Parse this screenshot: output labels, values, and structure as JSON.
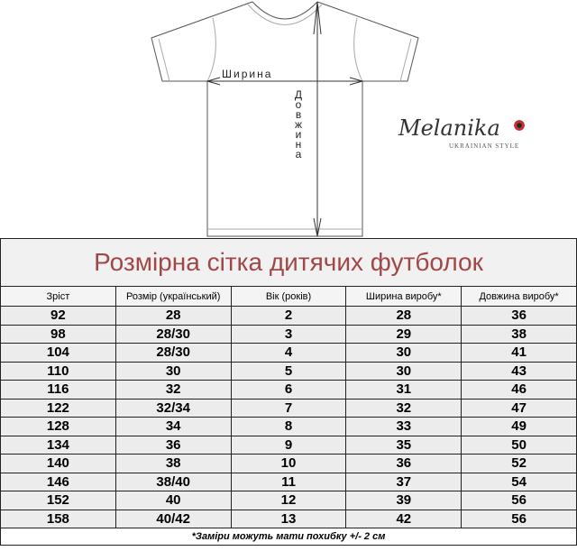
{
  "diagram": {
    "width_label": "Ширина",
    "length_label": "Довжина"
  },
  "logo": {
    "name": "Melanika",
    "tagline": "UKRAINIAN STYLE"
  },
  "table": {
    "title": "Розмірна сітка дитячих футболок",
    "headers": [
      "Зріст",
      "Розмір (український)",
      "Вік (років)",
      "Ширина виробу*",
      "Довжина виробу*"
    ],
    "rows": [
      [
        "92",
        "28",
        "2",
        "28",
        "36"
      ],
      [
        "98",
        "28/30",
        "3",
        "29",
        "38"
      ],
      [
        "104",
        "28/30",
        "4",
        "30",
        "41"
      ],
      [
        "110",
        "30",
        "5",
        "30",
        "43"
      ],
      [
        "116",
        "32",
        "6",
        "31",
        "46"
      ],
      [
        "122",
        "32/34",
        "7",
        "32",
        "47"
      ],
      [
        "128",
        "34",
        "8",
        "33",
        "49"
      ],
      [
        "134",
        "36",
        "9",
        "35",
        "50"
      ],
      [
        "140",
        "38",
        "10",
        "36",
        "52"
      ],
      [
        "146",
        "38/40",
        "11",
        "37",
        "54"
      ],
      [
        "152",
        "40",
        "12",
        "39",
        "56"
      ],
      [
        "158",
        "40/42",
        "13",
        "42",
        "56"
      ]
    ],
    "footnote": "*Заміри можуть мати похибку +/- 2 см"
  },
  "colors": {
    "title": "#a04848"
  }
}
